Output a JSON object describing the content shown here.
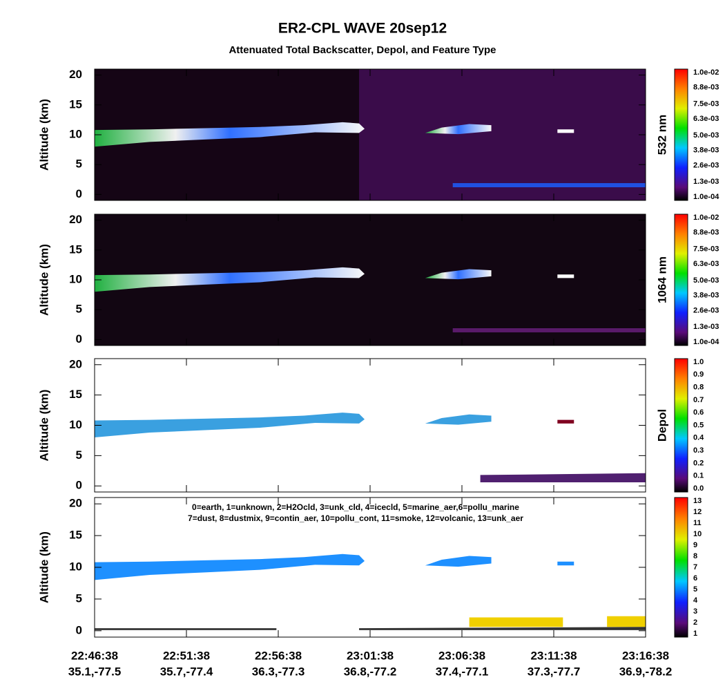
{
  "title": "ER2-CPL WAVE 20sep12",
  "subtitle": "Attenuated Total Backscatter, Depol, and Feature Type",
  "x_ticks": [
    {
      "time": "22:46:38",
      "location": "35.1,-77.5"
    },
    {
      "time": "22:51:38",
      "location": "35.7,-77.4"
    },
    {
      "time": "22:56:38",
      "location": "36.3,-77.3"
    },
    {
      "time": "23:01:38",
      "location": "36.8,-77.2"
    },
    {
      "time": "23:06:38",
      "location": "37.4,-77.1"
    },
    {
      "time": "23:11:38",
      "location": "37.3,-77.7"
    },
    {
      "time": "23:16:38",
      "location": "36.9,-78.2"
    }
  ],
  "chart_data": [
    {
      "type": "heatmap",
      "ylabel": "Altitude (km)",
      "ylim": [
        -1,
        21
      ],
      "yticks": [
        0,
        5,
        10,
        15,
        20
      ],
      "colorbar": {
        "label": "532 nm",
        "lim": [
          0.0001,
          0.01
        ],
        "ticks": [
          {
            "value": 0.0001,
            "label": "1.0e-04"
          },
          {
            "value": 0.0013,
            "label": "1.3e-03"
          },
          {
            "value": 0.0026,
            "label": "2.6e-03"
          },
          {
            "value": 0.0038,
            "label": "3.8e-03"
          },
          {
            "value": 0.005,
            "label": "5.0e-03"
          },
          {
            "value": 0.0063,
            "label": "6.3e-03"
          },
          {
            "value": 0.0075,
            "label": "7.5e-03"
          },
          {
            "value": 0.0088,
            "label": "8.8e-03"
          },
          {
            "value": 0.01,
            "label": "1.0e-02"
          }
        ]
      }
    },
    {
      "type": "heatmap",
      "ylabel": "Altitude (km)",
      "ylim": [
        -1,
        21
      ],
      "yticks": [
        0,
        5,
        10,
        15,
        20
      ],
      "colorbar": {
        "label": "1064 nm",
        "lim": [
          0.0001,
          0.01
        ],
        "ticks": [
          {
            "value": 0.0001,
            "label": "1.0e-04"
          },
          {
            "value": 0.0013,
            "label": "1.3e-03"
          },
          {
            "value": 0.0026,
            "label": "2.6e-03"
          },
          {
            "value": 0.0038,
            "label": "3.8e-03"
          },
          {
            "value": 0.005,
            "label": "5.0e-03"
          },
          {
            "value": 0.0063,
            "label": "6.3e-03"
          },
          {
            "value": 0.0075,
            "label": "7.5e-03"
          },
          {
            "value": 0.0088,
            "label": "8.8e-03"
          },
          {
            "value": 0.01,
            "label": "1.0e-02"
          }
        ]
      }
    },
    {
      "type": "heatmap",
      "ylabel": "Altitude (km)",
      "ylim": [
        -1,
        21
      ],
      "yticks": [
        0,
        5,
        10,
        15,
        20
      ],
      "colorbar": {
        "label": "Depol",
        "lim": [
          0,
          1
        ],
        "ticks": [
          {
            "value": 0,
            "label": "0.0"
          },
          0.1,
          0.2,
          0.3,
          0.4,
          0.5,
          0.6,
          0.7,
          0.8,
          0.9,
          {
            "value": 1,
            "label": "1.0"
          }
        ]
      }
    },
    {
      "type": "heatmap",
      "ylabel": "Altitude (km)",
      "ylim": [
        -1,
        21
      ],
      "yticks": [
        0,
        5,
        10,
        15,
        20
      ],
      "annotations": [
        "0=earth, 1=unknown, 2=H2Ocld, 3=unk_cld, 4=icecld, 5=marine_aer,6=pollu_marine",
        "7=dust, 8=dustmix, 9=contin_aer, 10=pollu_cont, 11=smoke, 12=volcanic, 13=unk_aer"
      ],
      "colorbar": {
        "lim": [
          1,
          13
        ],
        "ticks": [
          1,
          2,
          3,
          4,
          5,
          6,
          7,
          8,
          9,
          10,
          11,
          12,
          13
        ]
      }
    }
  ]
}
